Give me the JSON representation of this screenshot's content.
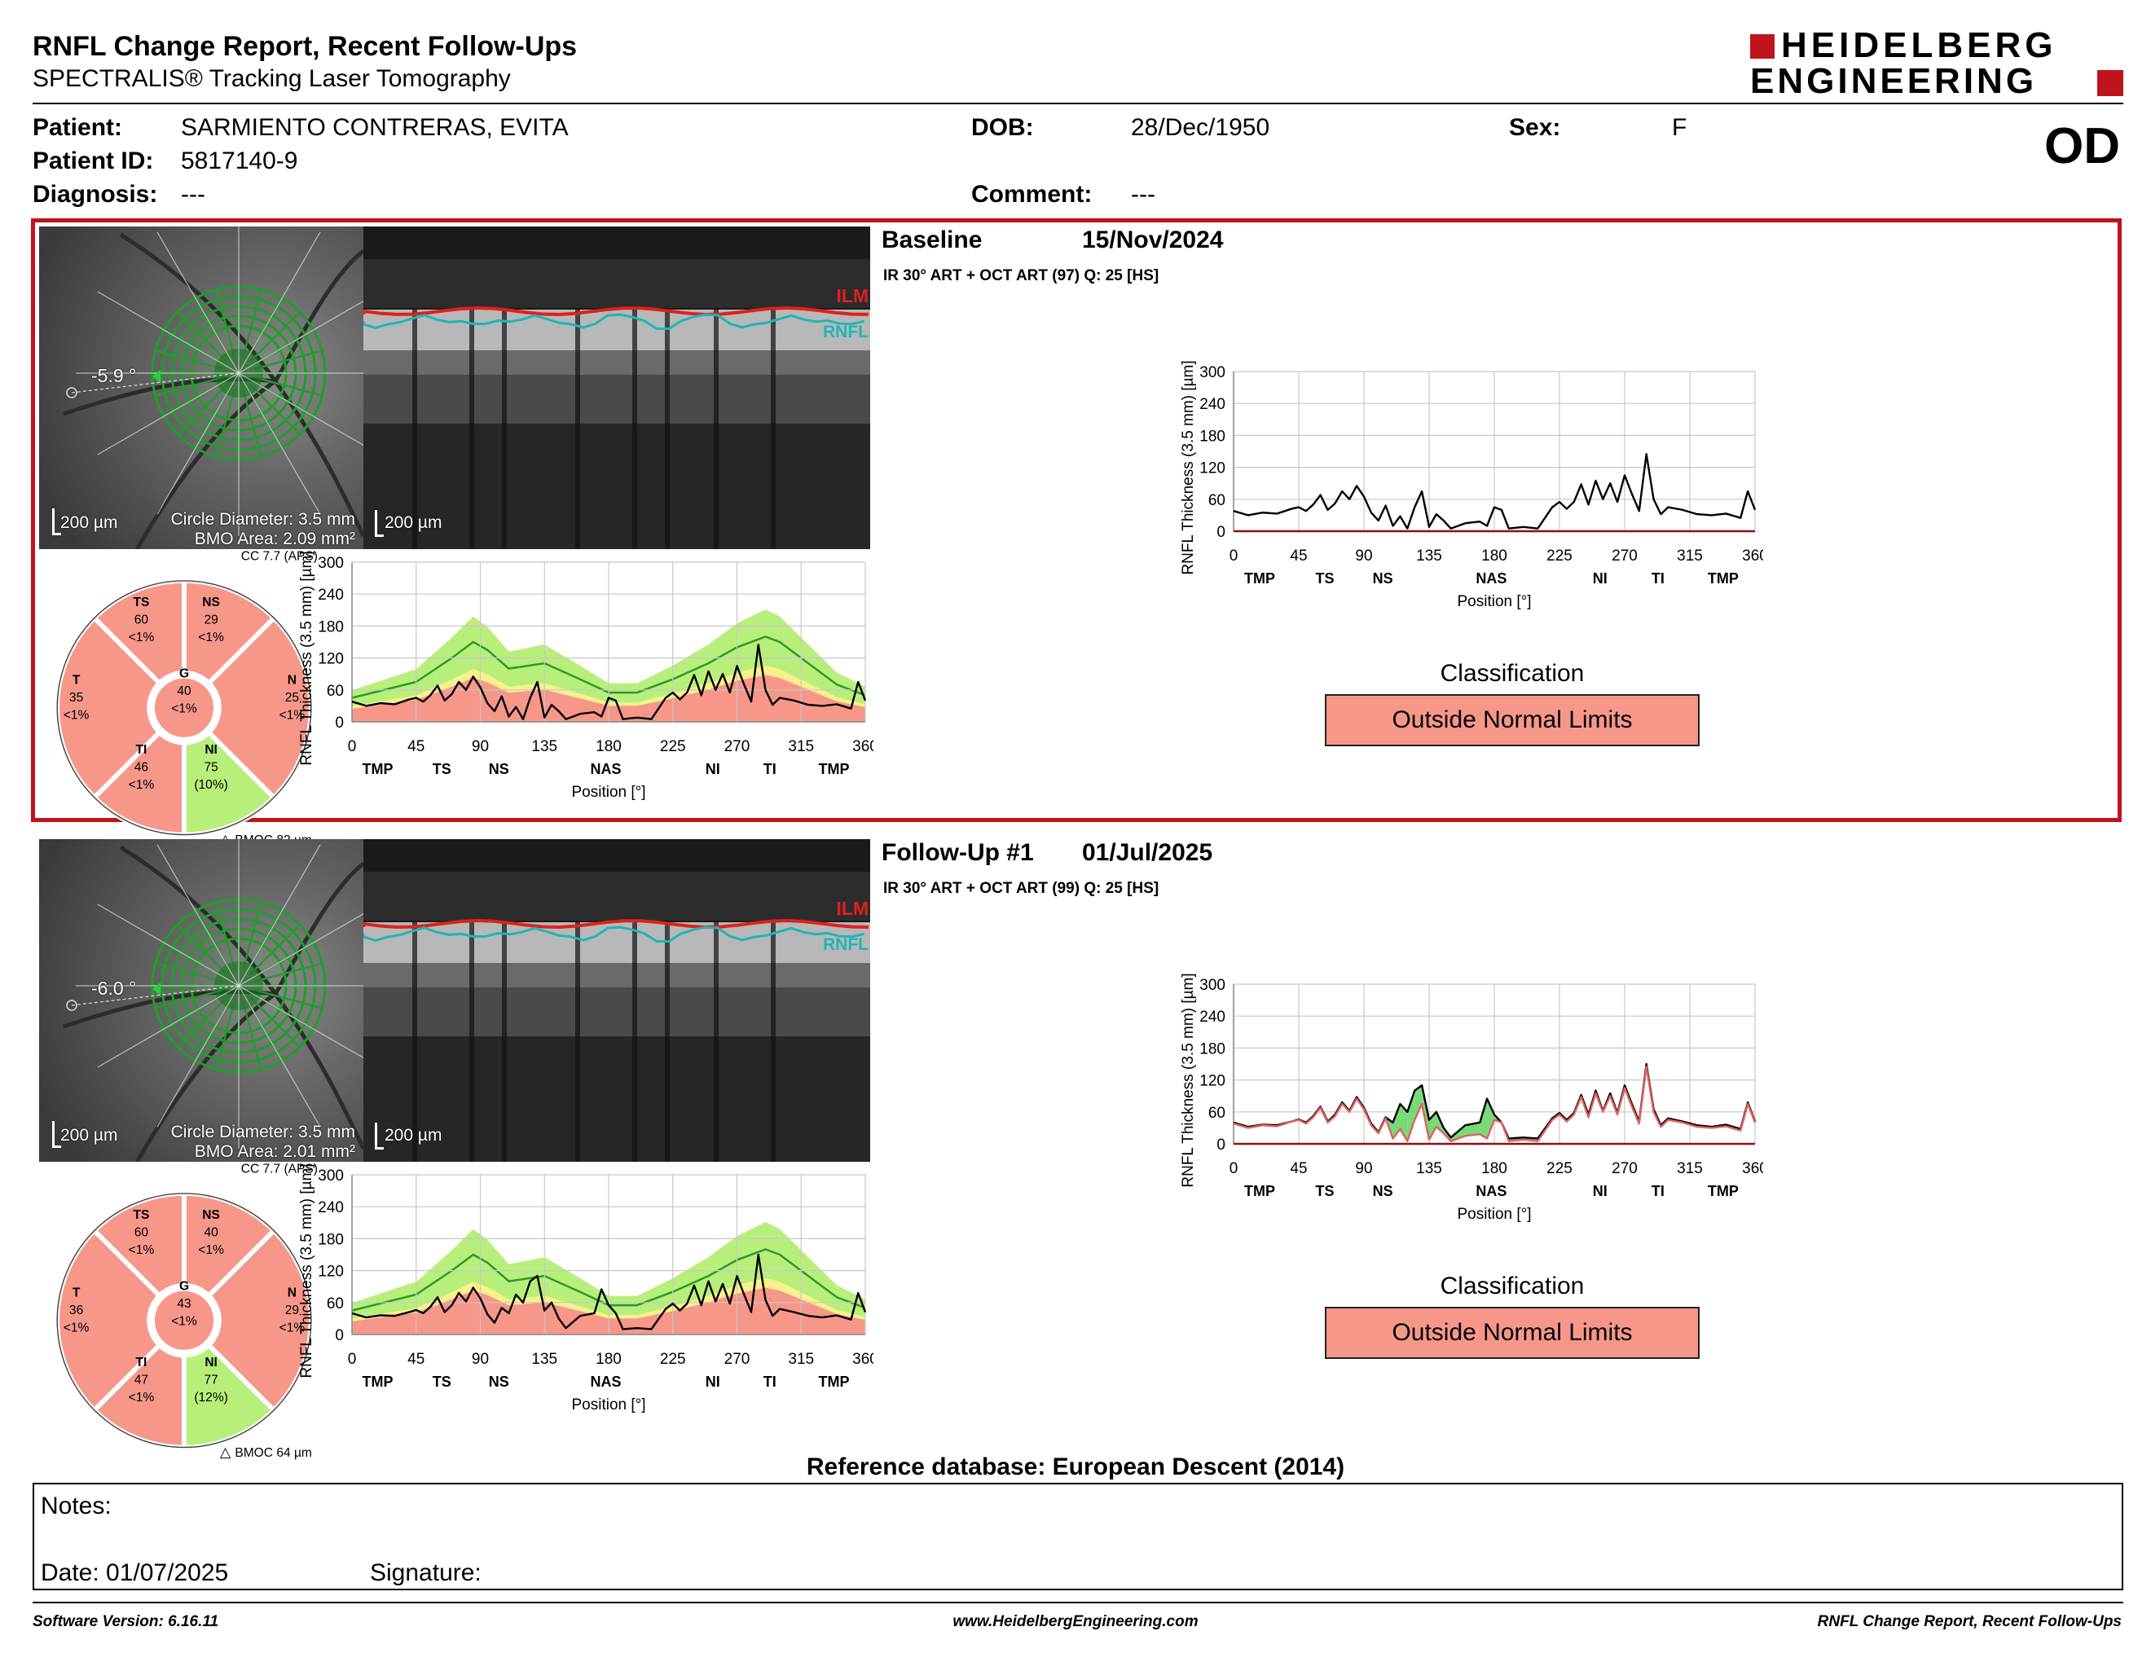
{
  "report": {
    "title": "RNFL Change Report, Recent Follow-Ups",
    "subtitle": "SPECTRALIS® Tracking Laser Tomography",
    "logo_line1": "HEIDELBERG",
    "logo_line2": "ENGINEERING",
    "eye": "OD"
  },
  "patient": {
    "name_label": "Patient:",
    "name": "SARMIENTO CONTRERAS, EVITA",
    "id_label": "Patient ID:",
    "id": "5817140-9",
    "diagnosis_label": "Diagnosis:",
    "diagnosis": "---",
    "dob_label": "DOB:",
    "dob": "28/Dec/1950",
    "comment_label": "Comment:",
    "comment": "---",
    "sex_label": "Sex:",
    "sex": "F"
  },
  "colors": {
    "border_red": "#c0141c",
    "outside_limits": "#f6978a",
    "normal_green": "#b8ef7a",
    "borderline_yellow": "#f8f08a",
    "ilm_red": "#e0201c",
    "rnfl_cyan": "#1fb6b6"
  },
  "scans": [
    {
      "title": "Baseline",
      "date": "15/Nov/2024",
      "meta": "IR 30° ART + OCT ART (97) Q: 25 [HS]",
      "angle": "-5.9 °",
      "scale_fundus": "200 µm",
      "scale_bscan": "200 µm",
      "circle_diameter": "Circle Diameter: 3.5 mm",
      "bmo_area": "BMO Area: 2.09 mm²",
      "ilm": "ILM",
      "rnfl": "RNFL",
      "cc": "CC 7.7 (APS)",
      "bmoc": "BMOC 82 µm",
      "sectors": {
        "TS": {
          "label": "TS",
          "value": "60",
          "pct": "<1%"
        },
        "NS": {
          "label": "NS",
          "value": "29",
          "pct": "<1%"
        },
        "T": {
          "label": "T",
          "value": "35",
          "pct": "<1%"
        },
        "G": {
          "label": "G",
          "value": "40",
          "pct": "<1%"
        },
        "N": {
          "label": "N",
          "value": "25",
          "pct": "<1%"
        },
        "TI": {
          "label": "TI",
          "value": "46",
          "pct": "<1%"
        },
        "NI": {
          "label": "NI",
          "value": "75",
          "pct": "(10%)"
        }
      },
      "classification_label": "Classification",
      "classification": "Outside Normal Limits"
    },
    {
      "title": "Follow-Up #1",
      "date": "01/Jul/2025",
      "meta": "IR 30° ART + OCT ART (99) Q: 25 [HS]",
      "angle": "-6.0 °",
      "scale_fundus": "200 µm",
      "scale_bscan": "200 µm",
      "circle_diameter": "Circle Diameter: 3.5 mm",
      "bmo_area": "BMO Area: 2.01 mm²",
      "ilm": "ILM",
      "rnfl": "RNFL",
      "cc": "CC 7.7 (APS)",
      "bmoc": "BMOC 64 µm",
      "sectors": {
        "TS": {
          "label": "TS",
          "value": "60",
          "pct": "<1%"
        },
        "NS": {
          "label": "NS",
          "value": "40",
          "pct": "<1%"
        },
        "T": {
          "label": "T",
          "value": "36",
          "pct": "<1%"
        },
        "G": {
          "label": "G",
          "value": "43",
          "pct": "<1%"
        },
        "N": {
          "label": "N",
          "value": "29",
          "pct": "<1%"
        },
        "TI": {
          "label": "TI",
          "value": "47",
          "pct": "<1%"
        },
        "NI": {
          "label": "NI",
          "value": "77",
          "pct": "(12%)"
        }
      },
      "classification_label": "Classification",
      "classification": "Outside Normal Limits"
    }
  ],
  "chart_data": [
    {
      "type": "line",
      "scan": "Baseline",
      "panel": "thickness-vs-normative",
      "ylabel": "RNFL Thickness (3.5 mm) [µm]",
      "xlabel": "Position [°]",
      "xlim": [
        0,
        360
      ],
      "ylim": [
        0,
        300
      ],
      "xticks": [
        "0",
        "45",
        "90",
        "135",
        "180",
        "225",
        "270",
        "315",
        "360"
      ],
      "yticks": [
        "0",
        "60",
        "120",
        "180",
        "240",
        "300"
      ],
      "sector_ticks": [
        {
          "x": 18,
          "label": "TMP"
        },
        {
          "x": 63,
          "label": "TS"
        },
        {
          "x": 103,
          "label": "NS"
        },
        {
          "x": 178,
          "label": "NAS"
        },
        {
          "x": 253,
          "label": "NI"
        },
        {
          "x": 293,
          "label": "TI"
        },
        {
          "x": 338,
          "label": "TMP"
        }
      ],
      "series": [
        {
          "x": [
            0,
            10,
            20,
            30,
            40,
            45,
            50,
            55,
            60,
            65,
            70,
            75,
            80,
            85,
            90,
            95,
            100,
            105,
            110,
            115,
            120,
            125,
            130,
            135,
            140,
            145,
            150,
            160,
            170,
            175,
            180,
            185,
            190,
            200,
            210,
            220,
            225,
            230,
            235,
            240,
            245,
            250,
            255,
            260,
            265,
            270,
            275,
            280,
            285,
            290,
            295,
            300,
            310,
            320,
            330,
            340,
            350,
            355,
            360
          ],
          "y": [
            38,
            30,
            35,
            33,
            42,
            45,
            38,
            50,
            68,
            40,
            52,
            75,
            60,
            85,
            65,
            35,
            20,
            48,
            10,
            28,
            5,
            45,
            75,
            8,
            32,
            20,
            5,
            15,
            18,
            10,
            45,
            40,
            5,
            8,
            5,
            45,
            55,
            42,
            55,
            88,
            50,
            95,
            60,
            90,
            55,
            105,
            70,
            38,
            145,
            60,
            32,
            45,
            40,
            32,
            30,
            33,
            25,
            75,
            40
          ]
        }
      ],
      "normative": {
        "x": [
          0,
          45,
          70,
          85,
          95,
          110,
          135,
          160,
          180,
          200,
          225,
          250,
          270,
          290,
          300,
          315,
          340,
          360
        ],
        "median": [
          45,
          75,
          120,
          150,
          135,
          100,
          110,
          80,
          55,
          55,
          80,
          110,
          140,
          160,
          150,
          120,
          70,
          50
        ]
      }
    },
    {
      "type": "line",
      "scan": "Baseline",
      "panel": "baseline-profile",
      "ylabel": "RNFL Thickness (3.5 mm) [µm]",
      "xlabel": "Position [°]",
      "xlim": [
        0,
        360
      ],
      "ylim": [
        0,
        300
      ],
      "xticks": [
        "0",
        "45",
        "90",
        "135",
        "180",
        "225",
        "270",
        "315",
        "360"
      ],
      "yticks": [
        "0",
        "60",
        "120",
        "180",
        "240",
        "300"
      ],
      "sector_ticks": [
        {
          "x": 18,
          "label": "TMP"
        },
        {
          "x": 63,
          "label": "TS"
        },
        {
          "x": 103,
          "label": "NS"
        },
        {
          "x": 178,
          "label": "NAS"
        },
        {
          "x": 253,
          "label": "NI"
        },
        {
          "x": 293,
          "label": "TI"
        },
        {
          "x": 338,
          "label": "TMP"
        }
      ],
      "series": [
        {
          "x": [
            0,
            10,
            20,
            30,
            40,
            45,
            50,
            55,
            60,
            65,
            70,
            75,
            80,
            85,
            90,
            95,
            100,
            105,
            110,
            115,
            120,
            125,
            130,
            135,
            140,
            145,
            150,
            160,
            170,
            175,
            180,
            185,
            190,
            200,
            210,
            220,
            225,
            230,
            235,
            240,
            245,
            250,
            255,
            260,
            265,
            270,
            275,
            280,
            285,
            290,
            295,
            300,
            310,
            320,
            330,
            340,
            350,
            355,
            360
          ],
          "y": [
            38,
            30,
            35,
            33,
            42,
            45,
            38,
            50,
            68,
            40,
            52,
            75,
            60,
            85,
            65,
            35,
            20,
            48,
            10,
            28,
            5,
            45,
            75,
            8,
            32,
            20,
            5,
            15,
            18,
            10,
            45,
            40,
            5,
            8,
            5,
            45,
            55,
            42,
            55,
            88,
            50,
            95,
            60,
            90,
            55,
            105,
            70,
            38,
            145,
            60,
            32,
            45,
            40,
            32,
            30,
            33,
            25,
            75,
            40
          ]
        }
      ]
    },
    {
      "type": "line",
      "scan": "Follow-Up #1",
      "panel": "thickness-vs-normative",
      "ylabel": "RNFL Thickness (3.5 mm) [µm]",
      "xlabel": "Position [°]",
      "xlim": [
        0,
        360
      ],
      "ylim": [
        0,
        300
      ],
      "xticks": [
        "0",
        "45",
        "90",
        "135",
        "180",
        "225",
        "270",
        "315",
        "360"
      ],
      "yticks": [
        "0",
        "60",
        "120",
        "180",
        "240",
        "300"
      ],
      "sector_ticks": [
        {
          "x": 18,
          "label": "TMP"
        },
        {
          "x": 63,
          "label": "TS"
        },
        {
          "x": 103,
          "label": "NS"
        },
        {
          "x": 178,
          "label": "NAS"
        },
        {
          "x": 253,
          "label": "NI"
        },
        {
          "x": 293,
          "label": "TI"
        },
        {
          "x": 338,
          "label": "TMP"
        }
      ],
      "series": [
        {
          "x": [
            0,
            10,
            20,
            30,
            40,
            45,
            50,
            55,
            60,
            65,
            70,
            75,
            80,
            85,
            90,
            95,
            100,
            105,
            110,
            115,
            120,
            125,
            130,
            135,
            140,
            145,
            150,
            160,
            170,
            175,
            180,
            185,
            190,
            200,
            210,
            220,
            225,
            230,
            235,
            240,
            245,
            250,
            255,
            260,
            265,
            270,
            275,
            280,
            285,
            290,
            295,
            300,
            310,
            320,
            330,
            340,
            350,
            355,
            360
          ],
          "y": [
            40,
            32,
            36,
            35,
            42,
            46,
            40,
            52,
            70,
            42,
            55,
            78,
            62,
            88,
            68,
            38,
            22,
            50,
            40,
            75,
            60,
            100,
            110,
            45,
            60,
            30,
            12,
            35,
            40,
            85,
            55,
            40,
            10,
            12,
            10,
            48,
            58,
            45,
            58,
            92,
            55,
            100,
            62,
            95,
            58,
            110,
            75,
            42,
            150,
            65,
            35,
            48,
            42,
            35,
            32,
            36,
            28,
            78,
            42
          ]
        }
      ],
      "normative": {
        "x": [
          0,
          45,
          70,
          85,
          95,
          110,
          135,
          160,
          180,
          200,
          225,
          250,
          270,
          290,
          300,
          315,
          340,
          360
        ],
        "median": [
          45,
          75,
          120,
          150,
          135,
          100,
          110,
          80,
          55,
          55,
          80,
          110,
          140,
          160,
          150,
          120,
          70,
          50
        ]
      }
    },
    {
      "type": "line",
      "scan": "Follow-Up #1",
      "panel": "change-vs-baseline",
      "ylabel": "RNFL Thickness (3.5 mm) [µm]",
      "xlabel": "Position [°]",
      "xlim": [
        0,
        360
      ],
      "ylim": [
        0,
        300
      ],
      "xticks": [
        "0",
        "45",
        "90",
        "135",
        "180",
        "225",
        "270",
        "315",
        "360"
      ],
      "yticks": [
        "0",
        "60",
        "120",
        "180",
        "240",
        "300"
      ],
      "sector_ticks": [
        {
          "x": 18,
          "label": "TMP"
        },
        {
          "x": 63,
          "label": "TS"
        },
        {
          "x": 103,
          "label": "NS"
        },
        {
          "x": 178,
          "label": "NAS"
        },
        {
          "x": 253,
          "label": "NI"
        },
        {
          "x": 293,
          "label": "TI"
        },
        {
          "x": 338,
          "label": "TMP"
        }
      ],
      "series": [
        {
          "x": [
            0,
            10,
            20,
            30,
            40,
            45,
            50,
            55,
            60,
            65,
            70,
            75,
            80,
            85,
            90,
            95,
            100,
            105,
            110,
            115,
            120,
            125,
            130,
            135,
            140,
            145,
            150,
            160,
            170,
            175,
            180,
            185,
            190,
            200,
            210,
            220,
            225,
            230,
            235,
            240,
            245,
            250,
            255,
            260,
            265,
            270,
            275,
            280,
            285,
            290,
            295,
            300,
            310,
            320,
            330,
            340,
            350,
            355,
            360
          ],
          "y": [
            40,
            32,
            36,
            35,
            42,
            46,
            40,
            52,
            70,
            42,
            55,
            78,
            62,
            88,
            68,
            38,
            22,
            50,
            40,
            75,
            60,
            100,
            110,
            45,
            60,
            30,
            12,
            35,
            40,
            85,
            55,
            40,
            10,
            12,
            10,
            48,
            58,
            45,
            58,
            92,
            55,
            100,
            62,
            95,
            58,
            110,
            75,
            42,
            150,
            65,
            35,
            48,
            42,
            35,
            32,
            36,
            28,
            78,
            42
          ]
        },
        {
          "x": [
            0,
            10,
            20,
            30,
            40,
            45,
            50,
            55,
            60,
            65,
            70,
            75,
            80,
            85,
            90,
            95,
            100,
            105,
            110,
            115,
            120,
            125,
            130,
            135,
            140,
            145,
            150,
            160,
            170,
            175,
            180,
            185,
            190,
            200,
            210,
            220,
            225,
            230,
            235,
            240,
            245,
            250,
            255,
            260,
            265,
            270,
            275,
            280,
            285,
            290,
            295,
            300,
            310,
            320,
            330,
            340,
            350,
            355,
            360
          ],
          "y": [
            38,
            30,
            35,
            33,
            42,
            45,
            38,
            50,
            68,
            40,
            52,
            75,
            60,
            85,
            65,
            35,
            20,
            48,
            10,
            28,
            5,
            45,
            75,
            8,
            32,
            20,
            5,
            15,
            18,
            10,
            45,
            40,
            5,
            8,
            5,
            45,
            55,
            42,
            55,
            88,
            50,
            95,
            60,
            90,
            55,
            105,
            70,
            38,
            145,
            60,
            32,
            45,
            40,
            32,
            30,
            33,
            25,
            75,
            40
          ]
        }
      ]
    }
  ],
  "reference_db": "Reference database: European Descent (2014)",
  "notes": {
    "notes_label": "Notes:",
    "date_label": "Date: 01/07/2025",
    "signature_label": "Signature:"
  },
  "footer": {
    "left": "Software Version: 6.16.11",
    "center": "www.HeidelbergEngineering.com",
    "right": "RNFL Change Report, Recent Follow-Ups"
  }
}
